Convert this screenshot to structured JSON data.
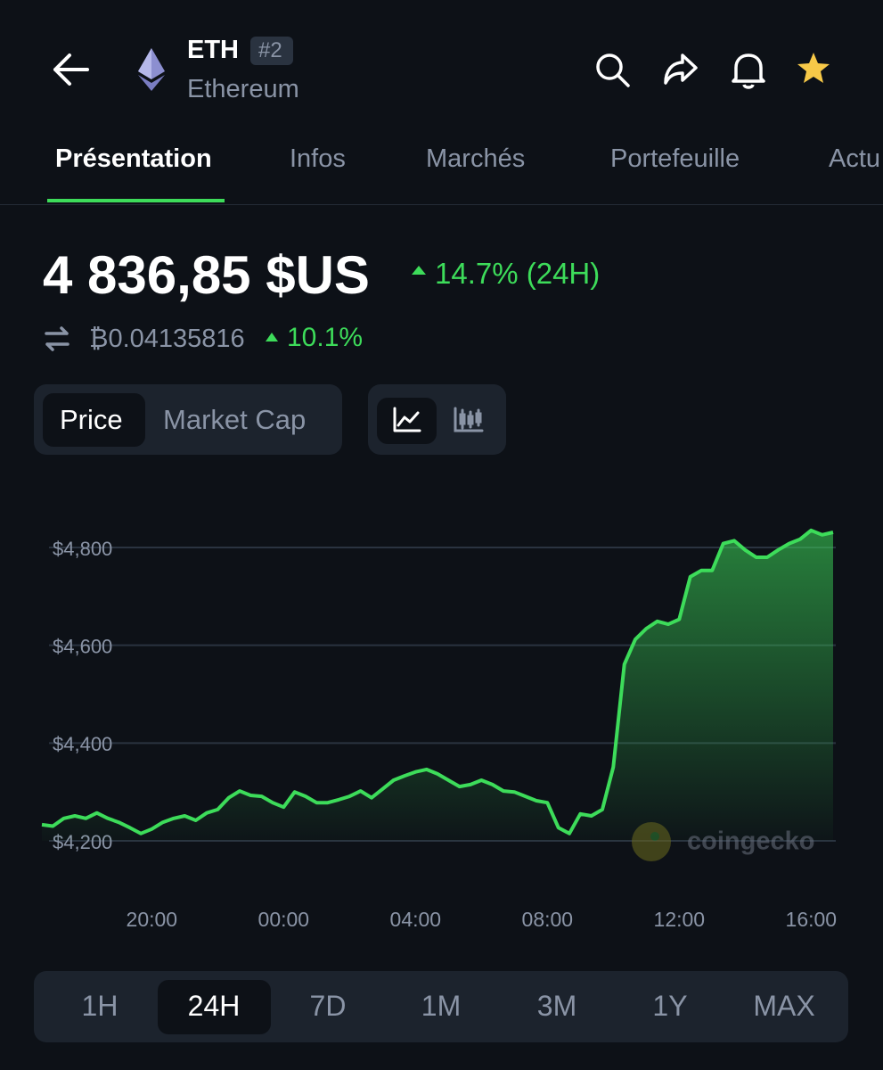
{
  "header": {
    "symbol": "ETH",
    "rank": "#2",
    "name": "Ethereum"
  },
  "tabs": [
    "Présentation",
    "Infos",
    "Marchés",
    "Portefeuille",
    "Actu"
  ],
  "price": {
    "value": "4 836,85 $US",
    "change": "14.7% (24H)",
    "btc": "₿0.04135816",
    "btc_change": "10.1%"
  },
  "chart_toggle": [
    "Price",
    "Market Cap"
  ],
  "chart_data": {
    "type": "line",
    "x": [
      "16:40",
      "17:00",
      "17:20",
      "17:40",
      "18:00",
      "18:20",
      "18:40",
      "19:00",
      "19:20",
      "19:40",
      "20:00",
      "20:20",
      "20:40",
      "21:00",
      "21:20",
      "21:40",
      "22:00",
      "22:20",
      "22:40",
      "23:00",
      "23:20",
      "23:40",
      "00:00",
      "00:20",
      "00:40",
      "01:00",
      "01:20",
      "01:40",
      "02:00",
      "02:20",
      "02:40",
      "03:00",
      "03:20",
      "03:40",
      "04:00",
      "04:20",
      "04:40",
      "05:00",
      "05:20",
      "05:40",
      "06:00",
      "06:20",
      "06:40",
      "07:00",
      "07:20",
      "07:40",
      "08:00",
      "08:20",
      "08:40",
      "09:00",
      "09:20",
      "09:40",
      "10:00",
      "10:20",
      "10:40",
      "11:00",
      "11:20",
      "11:40",
      "12:00",
      "12:20",
      "12:40",
      "13:00",
      "13:20",
      "13:40",
      "14:00",
      "14:20",
      "14:40",
      "15:00",
      "15:20",
      "15:40",
      "16:00",
      "16:20",
      "16:40"
    ],
    "series": [
      {
        "color": "#3ddc5a",
        "values": [
          4233,
          4230,
          4246,
          4251,
          4246,
          4257,
          4246,
          4238,
          4227,
          4215,
          4224,
          4238,
          4246,
          4251,
          4242,
          4257,
          4264,
          4288,
          4302,
          4293,
          4291,
          4278,
          4269,
          4300,
          4291,
          4278,
          4278,
          4284,
          4291,
          4302,
          4288,
          4306,
          4324,
          4333,
          4341,
          4346,
          4337,
          4324,
          4311,
          4315,
          4324,
          4315,
          4302,
          4300,
          4291,
          4282,
          4278,
          4227,
          4215,
          4255,
          4251,
          4264,
          4351,
          4561,
          4612,
          4634,
          4649,
          4643,
          4653,
          4740,
          4753,
          4753,
          4808,
          4814,
          4795,
          4780,
          4780,
          4795,
          4808,
          4817,
          4835,
          4826,
          4831
        ]
      }
    ],
    "ylim": [
      4150,
      4900
    ],
    "yticks": [
      {
        "value": 4200,
        "label": "$4,200"
      },
      {
        "value": 4400,
        "label": "$4,400"
      },
      {
        "value": 4600,
        "label": "$4,600"
      },
      {
        "value": 4800,
        "label": "$4,800"
      }
    ],
    "xticks": [
      "20:00",
      "00:00",
      "04:00",
      "08:00",
      "12:00",
      "16:00"
    ],
    "grid": true,
    "watermark": "coingecko"
  },
  "periods": [
    "1H",
    "24H",
    "7D",
    "1M",
    "3M",
    "1Y",
    "MAX"
  ]
}
